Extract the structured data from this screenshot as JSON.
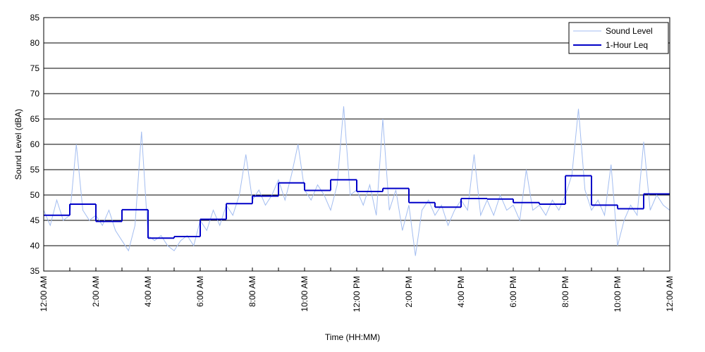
{
  "chart_data": {
    "type": "line",
    "ylabel": "Sound Level (dBA)",
    "xlabel": "Time (HH:MM)",
    "xlim": [
      0,
      24
    ],
    "ylim": [
      35,
      85
    ],
    "yticks": [
      35,
      40,
      45,
      50,
      55,
      60,
      65,
      70,
      75,
      80,
      85
    ],
    "xticks": [
      {
        "value": 0,
        "label": "12:00 AM"
      },
      {
        "value": 2,
        "label": "2:00 AM"
      },
      {
        "value": 4,
        "label": "4:00 AM"
      },
      {
        "value": 6,
        "label": "6:00 AM"
      },
      {
        "value": 8,
        "label": "8:00 AM"
      },
      {
        "value": 10,
        "label": "10:00 AM"
      },
      {
        "value": 12,
        "label": "12:00 PM"
      },
      {
        "value": 14,
        "label": "2:00 PM"
      },
      {
        "value": 16,
        "label": "4:00 PM"
      },
      {
        "value": 18,
        "label": "6:00 PM"
      },
      {
        "value": 20,
        "label": "8:00 PM"
      },
      {
        "value": 22,
        "label": "10:00 PM"
      },
      {
        "value": 24,
        "label": "12:00 AM"
      }
    ],
    "xminorticks": [
      1,
      3,
      5,
      7,
      9,
      11,
      13,
      15,
      17,
      19,
      21,
      23
    ],
    "grid": true,
    "legend": "upper right",
    "series": [
      {
        "name": "Sound Level",
        "color": "#a3bdf0",
        "drawstyle": "line",
        "x": [
          0,
          0.25,
          0.5,
          0.75,
          1,
          1.25,
          1.5,
          1.75,
          2,
          2.25,
          2.5,
          2.75,
          3,
          3.25,
          3.5,
          3.75,
          4,
          4.25,
          4.5,
          4.75,
          5,
          5.25,
          5.5,
          5.75,
          6,
          6.25,
          6.5,
          6.75,
          7,
          7.25,
          7.5,
          7.75,
          8,
          8.25,
          8.5,
          8.75,
          9,
          9.25,
          9.5,
          9.75,
          10,
          10.25,
          10.5,
          10.75,
          11,
          11.25,
          11.5,
          11.75,
          12,
          12.25,
          12.5,
          12.75,
          13,
          13.25,
          13.5,
          13.75,
          14,
          14.25,
          14.5,
          14.75,
          15,
          15.25,
          15.5,
          15.75,
          16,
          16.25,
          16.5,
          16.75,
          17,
          17.25,
          17.5,
          17.75,
          18,
          18.25,
          18.5,
          18.75,
          19,
          19.25,
          19.5,
          19.75,
          20,
          20.25,
          20.5,
          20.75,
          21,
          21.25,
          21.5,
          21.75,
          22,
          22.25,
          22.5,
          22.75,
          23,
          23.25,
          23.5,
          23.75,
          24
        ],
        "values": [
          47,
          44,
          49,
          45,
          46,
          60,
          47,
          45,
          46,
          44,
          47,
          43,
          41,
          39,
          44,
          62.5,
          42,
          41,
          42,
          40,
          39,
          41,
          42,
          40,
          45,
          43,
          47,
          44,
          48,
          46,
          50,
          58,
          49,
          51,
          48,
          50,
          53,
          49,
          54,
          60,
          51,
          49,
          52,
          50,
          47,
          52,
          67.5,
          50,
          51,
          48,
          52,
          46,
          65,
          47,
          51,
          43,
          48,
          38,
          47,
          49,
          46,
          48,
          44,
          47,
          49,
          47,
          58,
          46,
          49,
          46,
          50,
          47,
          48,
          45,
          55,
          47,
          48,
          46,
          49,
          47,
          50,
          54,
          67,
          51,
          47,
          49,
          46,
          56,
          40,
          45,
          48,
          46,
          60.5,
          47,
          50,
          48,
          47
        ]
      },
      {
        "name": "1-Hour Leq",
        "color": "#0000c8",
        "drawstyle": "steps-post",
        "x": [
          0,
          1,
          2,
          3,
          4,
          5,
          6,
          7,
          8,
          9,
          10,
          11,
          12,
          13,
          14,
          15,
          16,
          17,
          18,
          19,
          20,
          21,
          22,
          23
        ],
        "values": [
          46,
          48.2,
          44.8,
          47.1,
          41.5,
          41.8,
          45.2,
          48.3,
          49.8,
          52.4,
          50.9,
          53,
          50.7,
          51.3,
          48.5,
          47.6,
          49.3,
          49.2,
          48.5,
          48.2,
          53.8,
          48,
          47.3,
          50.2
        ]
      }
    ]
  }
}
